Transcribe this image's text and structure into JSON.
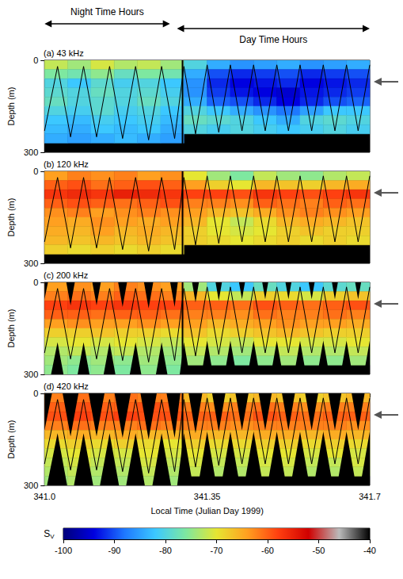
{
  "chart_data": [
    {
      "type": "heatmap",
      "title": "(a) 43 kHz",
      "ylabel": "Depth (m)",
      "tick_labels": "y",
      "xlim": [
        341,
        341.7
      ],
      "xticks": [
        {
          "value": 341,
          "label": "341.0"
        },
        341.35,
        341.7
      ],
      "ylim": [
        0,
        300
      ],
      "yticks": [
        0,
        300
      ],
      "x_edges": [
        341,
        341.05,
        341.1,
        341.15,
        341.2,
        341.25,
        341.3,
        341.35,
        341.4,
        341.45,
        341.5,
        341.55,
        341.6,
        341.65,
        341.7
      ],
      "depth_edges": [
        0,
        30,
        60,
        90,
        120,
        150,
        180,
        210,
        240,
        270,
        300
      ],
      "sv": [
        [
          -72,
          -74,
          -71,
          -73,
          -72,
          -74,
          -80,
          -84,
          -86,
          -85,
          -84,
          -86,
          -85,
          -84
        ],
        [
          -76,
          -77,
          -75,
          -78,
          -76,
          -77,
          -84,
          -90,
          -92,
          -91,
          -90,
          -92,
          -91,
          -90
        ],
        [
          -80,
          -82,
          -79,
          -81,
          -80,
          -82,
          -86,
          -92,
          -94,
          -93,
          -92,
          -94,
          -93,
          -92
        ],
        [
          -79,
          -80,
          -78,
          -80,
          -79,
          -81,
          -86,
          -91,
          -93,
          -94,
          -95,
          -93,
          -92,
          -91
        ],
        [
          -78,
          -80,
          -79,
          -80,
          -78,
          -80,
          -84,
          -89,
          -90,
          -92,
          -94,
          -92,
          -90,
          -89
        ],
        [
          -80,
          -81,
          -79,
          -81,
          -80,
          -82,
          -80,
          -82,
          -84,
          -86,
          -88,
          -85,
          -82,
          -82
        ],
        [
          -82,
          -83,
          -81,
          -82,
          -81,
          -83,
          -78,
          -79,
          -80,
          -82,
          -84,
          -80,
          -79,
          -80
        ],
        [
          -83,
          -84,
          -82,
          -83,
          -82,
          -84,
          -80,
          -81,
          -80,
          -81,
          -82,
          -81,
          -80,
          -81
        ],
        [
          -84,
          -85,
          -84,
          -83,
          -84,
          -85,
          null,
          null,
          null,
          null,
          null,
          null,
          null,
          null
        ],
        [
          null,
          null,
          null,
          null,
          null,
          null,
          null,
          null,
          null,
          null,
          null,
          null,
          null,
          null
        ]
      ],
      "arrow_depth": 70
    },
    {
      "type": "heatmap",
      "title": "(b) 120 kHz",
      "ylabel": "Depth (m)",
      "tick_labels": "y",
      "xlim": [
        341,
        341.7
      ],
      "xticks": [
        {
          "value": 341,
          "label": "341.0"
        },
        341.35,
        341.7
      ],
      "ylim": [
        0,
        300
      ],
      "yticks": [
        0,
        300
      ],
      "x_edges": [
        341,
        341.05,
        341.1,
        341.15,
        341.2,
        341.25,
        341.3,
        341.35,
        341.4,
        341.45,
        341.5,
        341.55,
        341.6,
        341.65,
        341.7
      ],
      "depth_edges": [
        0,
        30,
        60,
        90,
        120,
        150,
        180,
        210,
        240,
        270,
        300
      ],
      "sv": [
        [
          -64,
          -62,
          -63,
          -62,
          -64,
          -63,
          -70,
          -74,
          -76,
          -72,
          -74,
          -75,
          -73,
          -72
        ],
        [
          -60,
          -59,
          -61,
          -60,
          -59,
          -60,
          -64,
          -68,
          -70,
          -66,
          -67,
          -68,
          -66,
          -65
        ],
        [
          -57,
          -56,
          -57,
          -55,
          -56,
          -57,
          -58,
          -58,
          -59,
          -57,
          -58,
          -59,
          -58,
          -57
        ],
        [
          -60,
          -59,
          -60,
          -61,
          -60,
          -59,
          -62,
          -62,
          -63,
          -60,
          -61,
          -62,
          -60,
          -61
        ],
        [
          -63,
          -62,
          -64,
          -63,
          -62,
          -63,
          -64,
          -66,
          -67,
          -65,
          -63,
          -62,
          -63,
          -64
        ],
        [
          -64,
          -65,
          -63,
          -64,
          -65,
          -64,
          -66,
          -70,
          -72,
          -69,
          -66,
          -65,
          -66,
          -67
        ],
        [
          -65,
          -66,
          -64,
          -66,
          -65,
          -66,
          -68,
          -70,
          -71,
          -70,
          -68,
          -67,
          -68,
          -68
        ],
        [
          -66,
          -67,
          -66,
          -67,
          -66,
          -67,
          -68,
          -69,
          -70,
          -69,
          -68,
          -69,
          -68,
          -69
        ],
        [
          -68,
          -69,
          -68,
          -69,
          -68,
          -69,
          null,
          null,
          null,
          null,
          null,
          null,
          null,
          null
        ],
        [
          null,
          null,
          null,
          null,
          null,
          null,
          null,
          null,
          null,
          null,
          null,
          null,
          null,
          null
        ]
      ],
      "arrow_depth": 70
    },
    {
      "type": "heatmap",
      "title": "(c) 200 kHz",
      "ylabel": "Depth (m)",
      "tick_labels": "y",
      "xlim": [
        341,
        341.7
      ],
      "xticks": [
        {
          "value": 341,
          "label": "341.0"
        },
        341.35,
        341.7
      ],
      "ylim": [
        0,
        300
      ],
      "yticks": [
        0,
        300
      ],
      "x_edges": [
        341,
        341.05,
        341.1,
        341.15,
        341.2,
        341.25,
        341.3,
        341.35,
        341.4,
        341.45,
        341.5,
        341.55,
        341.6,
        341.65,
        341.7
      ],
      "depth_edges": [
        0,
        30,
        60,
        90,
        120,
        150,
        180,
        210,
        240,
        270,
        300
      ],
      "sv": [
        [
          -64,
          -63,
          -64,
          -62,
          -63,
          -64,
          -74,
          -80,
          -82,
          -78,
          -80,
          -82,
          -79,
          -78
        ],
        [
          -62,
          -61,
          -62,
          -60,
          -61,
          -62,
          -66,
          -70,
          -72,
          -68,
          -69,
          -71,
          -68,
          -67
        ],
        [
          -58,
          -57,
          -58,
          -57,
          -58,
          -58,
          -60,
          -60,
          -61,
          -59,
          -60,
          -61,
          -60,
          -59
        ],
        [
          -60,
          -60,
          -61,
          -60,
          -60,
          -61,
          -62,
          -62,
          -63,
          -61,
          -62,
          -62,
          -61,
          -62
        ],
        [
          -64,
          -63,
          -64,
          -64,
          -63,
          -64,
          -64,
          -66,
          -65,
          -64,
          -63,
          -64,
          -64,
          -65
        ],
        [
          -68,
          -68,
          -67,
          -68,
          -68,
          -69,
          -67,
          -69,
          -68,
          -67,
          -66,
          -67,
          -68,
          -68
        ],
        [
          -71,
          -70,
          -71,
          -70,
          -71,
          -72,
          -70,
          -71,
          -72,
          -70,
          -70,
          -71,
          -71,
          -70
        ],
        [
          -73,
          -72,
          -73,
          -72,
          -73,
          -74,
          -72,
          -73,
          -74,
          -73,
          -72,
          -73,
          -73,
          -72
        ],
        [
          -74,
          -75,
          -74,
          -75,
          -74,
          -75,
          -74,
          -75,
          -76,
          -75,
          -74,
          -75,
          -75,
          -74
        ],
        [
          -75,
          -76,
          -75,
          -76,
          -75,
          -76,
          null,
          null,
          null,
          null,
          null,
          null,
          null,
          null
        ]
      ],
      "visible_range": 175,
      "arrow_depth": 70
    },
    {
      "type": "heatmap",
      "title": "(d) 420 kHz",
      "ylabel": "Depth (m)",
      "xlabel": "Local Time (Julian Day 1999)",
      "xlim": [
        341,
        341.7
      ],
      "xticks": [
        {
          "value": 341,
          "label": "341.0"
        },
        341.35,
        341.7
      ],
      "ylim": [
        0,
        300
      ],
      "yticks": [
        0,
        300
      ],
      "x_edges": [
        341,
        341.05,
        341.1,
        341.15,
        341.2,
        341.25,
        341.3,
        341.35,
        341.4,
        341.45,
        341.5,
        341.55,
        341.6,
        341.65,
        341.7
      ],
      "depth_edges": [
        0,
        30,
        60,
        90,
        120,
        150,
        180,
        210,
        240,
        270,
        300
      ],
      "sv": [
        [
          -62,
          -61,
          -62,
          -61,
          -62,
          -62,
          -66,
          -68,
          -67,
          -66,
          -67,
          -68,
          -67,
          -66
        ],
        [
          -60,
          -59,
          -60,
          -60,
          -59,
          -60,
          -62,
          -63,
          -62,
          -61,
          -62,
          -63,
          -62,
          -62
        ],
        [
          -59,
          -58,
          -59,
          -58,
          -59,
          -59,
          -60,
          -60,
          -61,
          -59,
          -60,
          -61,
          -60,
          -60
        ],
        [
          -62,
          -61,
          -62,
          -62,
          -61,
          -62,
          -62,
          -62,
          -63,
          -62,
          -62,
          -62,
          -62,
          -63
        ],
        [
          -66,
          -65,
          -66,
          -65,
          -66,
          -66,
          -65,
          -66,
          -66,
          -65,
          -65,
          -66,
          -65,
          -66
        ],
        [
          -69,
          -68,
          -69,
          -68,
          -69,
          -70,
          -68,
          -69,
          -69,
          -68,
          -68,
          -69,
          -68,
          -69
        ],
        [
          -71,
          -70,
          -71,
          -71,
          -70,
          -71,
          -70,
          -71,
          -71,
          -70,
          -70,
          -71,
          -70,
          -71
        ],
        [
          -72,
          -71,
          -72,
          -72,
          -71,
          -72,
          -71,
          -72,
          -72,
          -71,
          -71,
          -72,
          -72,
          -71
        ],
        [
          -73,
          -72,
          -73,
          -73,
          -72,
          -73,
          -72,
          -73,
          -73,
          -72,
          -72,
          -73,
          -73,
          -72
        ],
        [
          -74,
          -73,
          -74,
          -74,
          -73,
          -74,
          null,
          null,
          null,
          null,
          null,
          null,
          null,
          null
        ]
      ],
      "visible_range": 110,
      "arrow_depth": 70
    }
  ],
  "figure": {
    "periods": [
      {
        "label": "Night Time Hours",
        "start": 341,
        "end": 341.27
      },
      {
        "label": "Day Time Hours",
        "start": 341.285,
        "end": 341.7
      }
    ],
    "day_start": 341.297,
    "track": {
      "x": [
        341,
        341.028,
        341.056,
        341.084,
        341.112,
        341.14,
        341.168,
        341.196,
        341.224,
        341.252,
        341.28,
        341.3,
        341.325,
        341.35,
        341.375,
        341.4,
        341.425,
        341.45,
        341.475,
        341.5,
        341.525,
        341.55,
        341.575,
        341.6,
        341.625,
        341.65,
        341.675,
        341.7
      ],
      "depth": [
        230,
        20,
        250,
        20,
        250,
        20,
        255,
        20,
        260,
        20,
        255,
        20,
        240,
        15,
        235,
        15,
        230,
        15,
        230,
        15,
        230,
        15,
        230,
        15,
        230,
        15,
        230,
        15
      ]
    },
    "colorbar": {
      "label": "SV",
      "range": [
        -100,
        -40
      ],
      "ticks": [
        -100,
        -90,
        -80,
        -70,
        -60,
        -50,
        -40
      ]
    }
  }
}
